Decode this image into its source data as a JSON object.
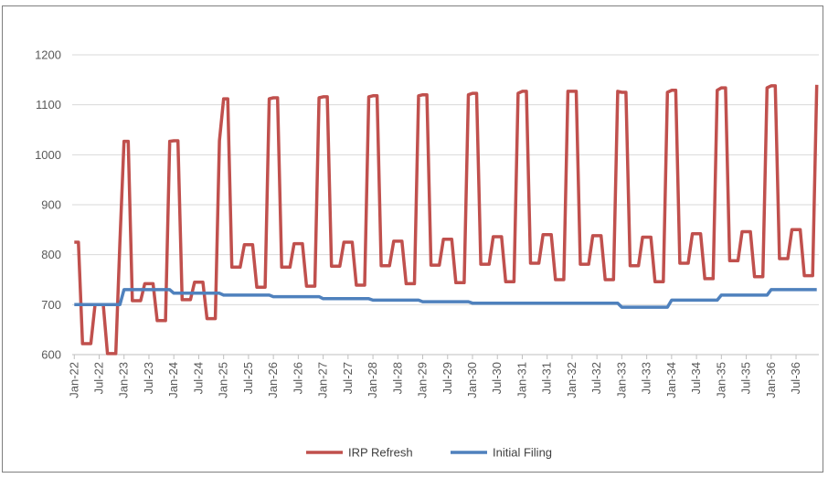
{
  "chart_data": {
    "type": "line",
    "title": "",
    "xlabel": "",
    "ylabel": "",
    "ylim": [
      600,
      1200
    ],
    "yticks": [
      600,
      700,
      800,
      900,
      1000,
      1100,
      1200
    ],
    "grid": "horizontal",
    "legend_position": "bottom",
    "x_tick_labels": [
      "Jan-22",
      "Jul-22",
      "Jan-23",
      "Jul-23",
      "Jan-24",
      "Jul-24",
      "Jan-25",
      "Jul-25",
      "Jan-26",
      "Jul-26",
      "Jan-27",
      "Jul-27",
      "Jan-28",
      "Jul-28",
      "Jan-29",
      "Jul-29",
      "Jan-30",
      "Jul-30",
      "Jan-31",
      "Jul-31",
      "Jan-32",
      "Jul-32",
      "Jan-33",
      "Jul-33",
      "Jan-34",
      "Jul-34",
      "Jan-35",
      "Jul-35",
      "Jan-36",
      "Jul-36"
    ],
    "x_start": "Jan-22",
    "x_end": "Dec-36",
    "series": [
      {
        "name": "IRP Refresh",
        "color": "#c0504d",
        "annual_pattern_note": "",
        "yearly": [
          {
            "year": "2022",
            "winter_peak": 825,
            "spring": 622,
            "summer": 700,
            "fall": 602
          },
          {
            "year": "2023",
            "winter_peak": 1027,
            "spring": 708,
            "summer": 742,
            "fall": 668
          },
          {
            "year": "2024",
            "winter_peak": 1028,
            "spring": 710,
            "summer": 745,
            "fall": 672
          },
          {
            "year": "2025",
            "winter_peak": 1112,
            "spring": 775,
            "summer": 820,
            "fall": 735
          },
          {
            "year": "2026",
            "winter_peak": 1114,
            "spring": 775,
            "summer": 822,
            "fall": 737
          },
          {
            "year": "2027",
            "winter_peak": 1116,
            "spring": 777,
            "summer": 825,
            "fall": 739
          },
          {
            "year": "2028",
            "winter_peak": 1118,
            "spring": 778,
            "summer": 827,
            "fall": 742
          },
          {
            "year": "2029",
            "winter_peak": 1120,
            "spring": 779,
            "summer": 831,
            "fall": 744
          },
          {
            "year": "2030",
            "winter_peak": 1123,
            "spring": 781,
            "summer": 836,
            "fall": 746
          },
          {
            "year": "2031",
            "winter_peak": 1127,
            "spring": 783,
            "summer": 840,
            "fall": 750
          },
          {
            "year": "2032",
            "winter_peak": 1127,
            "spring": 781,
            "summer": 838,
            "fall": 750
          },
          {
            "year": "2033",
            "winter_peak": 1125,
            "spring": 778,
            "summer": 835,
            "fall": 746
          },
          {
            "year": "2034",
            "winter_peak": 1129,
            "spring": 783,
            "summer": 842,
            "fall": 752
          },
          {
            "year": "2035",
            "winter_peak": 1134,
            "spring": 788,
            "summer": 846,
            "fall": 756
          },
          {
            "year": "2036",
            "winter_peak": 1138,
            "spring": 792,
            "summer": 850,
            "fall": 758,
            "next_jan": 1140
          }
        ]
      },
      {
        "name": "Initial Filing",
        "color": "#4f81bd",
        "points": [
          {
            "x": "Jan-22",
            "y": 700
          },
          {
            "x": "Dec-22",
            "y": 700
          },
          {
            "x": "Jan-23",
            "y": 730
          },
          {
            "x": "Dec-23",
            "y": 730
          },
          {
            "x": "Jan-24",
            "y": 723
          },
          {
            "x": "Dec-24",
            "y": 723
          },
          {
            "x": "Jan-25",
            "y": 719
          },
          {
            "x": "Dec-25",
            "y": 719
          },
          {
            "x": "Jan-26",
            "y": 716
          },
          {
            "x": "Dec-26",
            "y": 716
          },
          {
            "x": "Jan-27",
            "y": 712
          },
          {
            "x": "Dec-27",
            "y": 712
          },
          {
            "x": "Jan-28",
            "y": 709
          },
          {
            "x": "Dec-28",
            "y": 709
          },
          {
            "x": "Jan-29",
            "y": 706
          },
          {
            "x": "Dec-29",
            "y": 706
          },
          {
            "x": "Jan-30",
            "y": 703
          },
          {
            "x": "Dec-30",
            "y": 703
          },
          {
            "x": "Jan-31",
            "y": 703
          },
          {
            "x": "Dec-32",
            "y": 703
          },
          {
            "x": "Jan-33",
            "y": 695
          },
          {
            "x": "Dec-33",
            "y": 695
          },
          {
            "x": "Jan-34",
            "y": 709
          },
          {
            "x": "Dec-34",
            "y": 709
          },
          {
            "x": "Jan-35",
            "y": 719
          },
          {
            "x": "Dec-35",
            "y": 719
          },
          {
            "x": "Jan-36",
            "y": 730
          },
          {
            "x": "Dec-36",
            "y": 730
          }
        ]
      }
    ]
  }
}
